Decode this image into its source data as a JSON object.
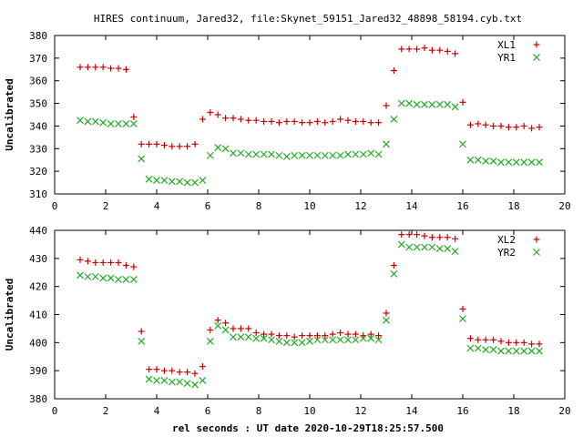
{
  "title": "HIRES continuum, Jared32, file:Skynet_59151_Jared32_48898_58194.cyb.txt",
  "xlabel": "rel seconds : UT date 2020-10-29T18:25:57.500",
  "colors": {
    "red": "#cc0000",
    "green": "#22aa22"
  },
  "chart_data": [
    {
      "type": "scatter",
      "ylabel": "Uncalibrated",
      "xlim": [
        0,
        20
      ],
      "ylim": [
        310,
        380
      ],
      "xticks": [
        0,
        2,
        4,
        6,
        8,
        10,
        12,
        14,
        16,
        18,
        20
      ],
      "yticks": [
        310,
        320,
        330,
        340,
        350,
        360,
        370,
        380
      ],
      "grid": false,
      "legend": "top-right",
      "series": [
        {
          "name": "XL1",
          "marker": "plus",
          "color": "#cc0000",
          "x": [
            1.0,
            1.3,
            1.6,
            1.9,
            2.2,
            2.5,
            2.8,
            3.1,
            3.4,
            3.7,
            4.0,
            4.3,
            4.6,
            4.9,
            5.2,
            5.5,
            5.8,
            6.1,
            6.4,
            6.7,
            7.0,
            7.3,
            7.6,
            7.9,
            8.2,
            8.5,
            8.8,
            9.1,
            9.4,
            9.7,
            10.0,
            10.3,
            10.6,
            10.9,
            11.2,
            11.5,
            11.8,
            12.1,
            12.4,
            12.7,
            13.0,
            13.3,
            13.6,
            13.9,
            14.2,
            14.5,
            14.8,
            15.1,
            15.4,
            15.7,
            16.0,
            16.3,
            16.6,
            16.9,
            17.2,
            17.5,
            17.8,
            18.1,
            18.4,
            18.7,
            19.0
          ],
          "y": [
            366,
            366,
            366,
            366,
            365.5,
            365.5,
            365,
            344,
            332,
            332,
            332,
            331.5,
            331,
            331,
            331,
            332,
            343,
            346,
            345,
            343.5,
            343.5,
            343,
            342.5,
            342.5,
            342,
            342,
            341.5,
            342,
            342,
            341.5,
            341.5,
            342,
            341.5,
            342,
            343,
            342.5,
            342,
            342,
            341.5,
            341.5,
            349,
            364.5,
            374,
            374,
            374,
            374.5,
            373.5,
            373.5,
            373,
            372,
            350.5,
            340.5,
            341,
            340.5,
            340,
            340,
            339.5,
            339.5,
            340,
            339,
            339.5
          ]
        },
        {
          "name": "YR1",
          "marker": "cross",
          "color": "#22aa22",
          "x": [
            1.0,
            1.3,
            1.6,
            1.9,
            2.2,
            2.5,
            2.8,
            3.1,
            3.4,
            3.7,
            4.0,
            4.3,
            4.6,
            4.9,
            5.2,
            5.5,
            5.8,
            6.1,
            6.4,
            6.7,
            7.0,
            7.3,
            7.6,
            7.9,
            8.2,
            8.5,
            8.8,
            9.1,
            9.4,
            9.7,
            10.0,
            10.3,
            10.6,
            10.9,
            11.2,
            11.5,
            11.8,
            12.1,
            12.4,
            12.7,
            13.0,
            13.3,
            13.6,
            13.9,
            14.2,
            14.5,
            14.8,
            15.1,
            15.4,
            15.7,
            16.0,
            16.3,
            16.6,
            16.9,
            17.2,
            17.5,
            17.8,
            18.1,
            18.4,
            18.7,
            19.0
          ],
          "y": [
            342.5,
            342,
            342,
            341.5,
            341,
            341,
            341,
            341,
            325.5,
            316.5,
            316,
            316,
            315.5,
            315.5,
            315,
            315,
            316,
            327,
            330.5,
            330,
            328,
            328,
            327.5,
            327.5,
            327.5,
            327.5,
            327,
            326.5,
            327,
            327,
            327,
            327,
            327,
            327,
            327,
            327.5,
            327.5,
            327.5,
            328,
            327.5,
            332,
            343,
            350,
            350,
            349.5,
            349.5,
            349.5,
            349.5,
            349.5,
            348.5,
            332,
            325,
            325,
            324.5,
            324.5,
            324,
            324,
            324,
            324,
            324,
            324
          ]
        }
      ]
    },
    {
      "type": "scatter",
      "ylabel": "Uncalibrated",
      "xlabel": "rel seconds : UT date 2020-10-29T18:25:57.500",
      "xlim": [
        0,
        20
      ],
      "ylim": [
        380,
        440
      ],
      "xticks": [
        0,
        2,
        4,
        6,
        8,
        10,
        12,
        14,
        16,
        18,
        20
      ],
      "yticks": [
        380,
        390,
        400,
        410,
        420,
        430,
        440
      ],
      "grid": false,
      "legend": "top-right",
      "series": [
        {
          "name": "XL2",
          "marker": "plus",
          "color": "#cc0000",
          "x": [
            1.0,
            1.3,
            1.6,
            1.9,
            2.2,
            2.5,
            2.8,
            3.1,
            3.4,
            3.7,
            4.0,
            4.3,
            4.6,
            4.9,
            5.2,
            5.5,
            5.8,
            6.1,
            6.4,
            6.7,
            7.0,
            7.3,
            7.6,
            7.9,
            8.2,
            8.5,
            8.8,
            9.1,
            9.4,
            9.7,
            10.0,
            10.3,
            10.6,
            10.9,
            11.2,
            11.5,
            11.8,
            12.1,
            12.4,
            12.7,
            13.0,
            13.3,
            13.6,
            13.9,
            14.2,
            14.5,
            14.8,
            15.1,
            15.4,
            15.7,
            16.0,
            16.3,
            16.6,
            16.9,
            17.2,
            17.5,
            17.8,
            18.1,
            18.4,
            18.7,
            19.0
          ],
          "y": [
            429.5,
            429,
            428.5,
            428.5,
            428.5,
            428.5,
            427.5,
            427,
            404,
            390.5,
            390.5,
            390,
            390,
            389.5,
            389.5,
            389,
            391.5,
            404.5,
            408,
            407,
            405,
            405,
            405,
            403.5,
            403,
            403,
            402.5,
            402.5,
            402,
            402.5,
            402.5,
            402.5,
            402.5,
            403,
            403.5,
            403,
            403,
            402.5,
            403,
            402.5,
            410.5,
            427.5,
            438.5,
            438.5,
            438.5,
            438,
            437.5,
            437.5,
            437.5,
            437,
            412,
            401.5,
            401,
            401,
            401,
            400.5,
            400,
            400,
            400,
            399.5,
            399.5
          ]
        },
        {
          "name": "YR2",
          "marker": "cross",
          "color": "#22aa22",
          "x": [
            1.0,
            1.3,
            1.6,
            1.9,
            2.2,
            2.5,
            2.8,
            3.1,
            3.4,
            3.7,
            4.0,
            4.3,
            4.6,
            4.9,
            5.2,
            5.5,
            5.8,
            6.1,
            6.4,
            6.7,
            7.0,
            7.3,
            7.6,
            7.9,
            8.2,
            8.5,
            8.8,
            9.1,
            9.4,
            9.7,
            10.0,
            10.3,
            10.6,
            10.9,
            11.2,
            11.5,
            11.8,
            12.1,
            12.4,
            12.7,
            13.0,
            13.3,
            13.6,
            13.9,
            14.2,
            14.5,
            14.8,
            15.1,
            15.4,
            15.7,
            16.0,
            16.3,
            16.6,
            16.9,
            17.2,
            17.5,
            17.8,
            18.1,
            18.4,
            18.7,
            19.0
          ],
          "y": [
            424,
            423.5,
            423.5,
            423,
            423,
            422.5,
            422.5,
            422.5,
            400.5,
            387,
            386.5,
            386.5,
            386,
            386,
            385.5,
            385,
            386.5,
            400.5,
            406,
            404.5,
            402,
            402,
            402,
            401.5,
            401.5,
            401,
            400.5,
            400,
            400,
            400,
            400.5,
            401,
            401,
            401,
            401,
            401,
            401,
            401.5,
            401.5,
            401,
            408,
            424.5,
            435,
            434,
            434,
            434,
            434,
            433.5,
            433.5,
            432.5,
            408.5,
            398,
            398,
            397.5,
            397.5,
            397,
            397,
            397,
            397,
            397,
            397
          ]
        }
      ]
    }
  ]
}
